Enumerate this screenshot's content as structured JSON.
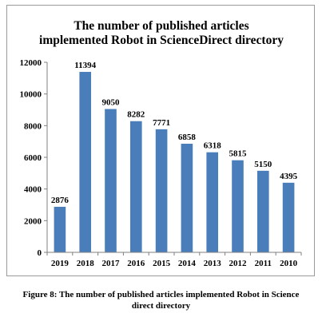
{
  "chart_data": {
    "type": "bar",
    "title_lines": [
      "The number of  published articles",
      "implemented Robot in ScienceDirect directory"
    ],
    "categories": [
      "2019",
      "2018",
      "2017",
      "2016",
      "2015",
      "2014",
      "2013",
      "2012",
      "2011",
      "2010"
    ],
    "values": [
      2876,
      11394,
      9050,
      8282,
      7771,
      6858,
      6318,
      5815,
      5150,
      4395
    ],
    "data_labels": [
      "2876",
      "11394",
      "9050",
      "8282",
      "7771",
      "6858",
      "6318",
      "5815",
      "5150",
      "4395"
    ],
    "ylim": [
      0,
      12000
    ],
    "y_ticks": [
      0,
      2000,
      4000,
      6000,
      8000,
      10000,
      12000
    ],
    "y_tick_labels": [
      "0",
      "2000",
      "4000",
      "6000",
      "8000",
      "10000",
      "12000"
    ],
    "grid": false,
    "legend": "none",
    "bar_color": "#4a7ebb",
    "xlabel": "",
    "ylabel": ""
  },
  "caption": {
    "line1": "Figure 8: The number of published articles implemented Robot in Science",
    "line2": "direct directory"
  }
}
